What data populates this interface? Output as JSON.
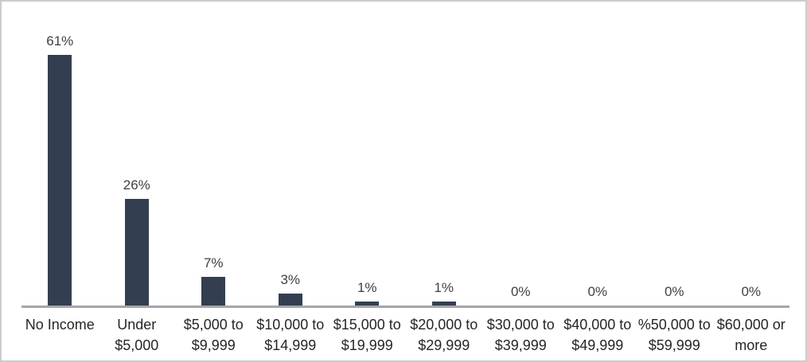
{
  "chart_data": {
    "type": "bar",
    "title": "",
    "xlabel": "",
    "ylabel": "",
    "categories": [
      "No Income",
      "Under $5,000",
      "$5,000 to $9,999",
      "$10,000 to $14,999",
      "$15,000 to $19,999",
      "$20,000 to $29,999",
      "$30,000 to $39,999",
      "$40,000 to $49,999",
      "%50,000 to $59,999",
      "$60,000 or more"
    ],
    "category_lines": [
      [
        "No Income"
      ],
      [
        "Under",
        "$5,000"
      ],
      [
        "$5,000 to",
        "$9,999"
      ],
      [
        "$10,000 to",
        "$14,999"
      ],
      [
        "$15,000 to",
        "$19,999"
      ],
      [
        "$20,000 to",
        "$29,999"
      ],
      [
        "$30,000 to",
        "$39,999"
      ],
      [
        "$40,000 to",
        "$49,999"
      ],
      [
        "%50,000 to",
        "$59,999"
      ],
      [
        "$60,000 or",
        "more"
      ]
    ],
    "values": [
      61,
      26,
      7,
      3,
      1,
      1,
      0,
      0,
      0,
      0
    ],
    "data_labels": [
      "61%",
      "26%",
      "7%",
      "3%",
      "1%",
      "1%",
      "0%",
      "0%",
      "0%",
      "0%"
    ],
    "ylim": [
      0,
      74
    ],
    "grid": false,
    "legend": false,
    "bar_color": "#333F50",
    "axis_line_color": "#A6A6A6",
    "data_label_color": "#404040",
    "category_label_color": "#262626",
    "background_color": "#FFFFFF",
    "frame_border_color": "#CCCCCC"
  }
}
